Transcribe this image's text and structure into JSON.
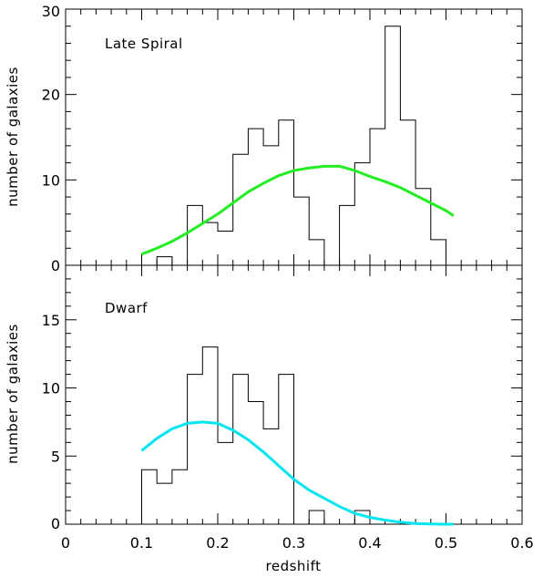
{
  "chart_data": [
    {
      "type": "histogram",
      "title": "Late Spiral",
      "xlabel": "",
      "ylabel": "number of galaxies",
      "xlim": [
        0,
        0.6
      ],
      "ylim": [
        0,
        30
      ],
      "y_ticks": [
        "0",
        "10",
        "20",
        "30"
      ],
      "bin_width": 0.02,
      "bin_start": 0.1,
      "hist_counts": [
        0,
        1,
        0,
        7,
        5,
        4,
        13,
        16,
        14,
        17,
        8,
        3,
        0,
        7,
        12,
        16,
        28,
        17,
        9,
        3,
        0
      ],
      "curve": {
        "color": "#22ee22",
        "x": [
          0.1,
          0.12,
          0.14,
          0.16,
          0.18,
          0.2,
          0.22,
          0.24,
          0.26,
          0.28,
          0.3,
          0.32,
          0.34,
          0.36,
          0.38,
          0.4,
          0.42,
          0.44,
          0.46,
          0.48,
          0.5,
          0.51
        ],
        "y": [
          1.3,
          2.0,
          2.8,
          3.8,
          4.9,
          6.0,
          7.3,
          8.6,
          9.6,
          10.5,
          11.1,
          11.4,
          11.6,
          11.6,
          11.1,
          10.4,
          9.8,
          9.1,
          8.2,
          7.3,
          6.4,
          5.8
        ]
      }
    },
    {
      "type": "histogram",
      "title": "Dwarf",
      "xlabel": "redshift",
      "ylabel": "number of galaxies",
      "xlim": [
        0,
        0.6
      ],
      "ylim": [
        0,
        19
      ],
      "y_ticks": [
        "0",
        "5",
        "10",
        "15"
      ],
      "x_ticks": [
        "0",
        "0.1",
        "0.2",
        "0.3",
        "0.4",
        "0.5",
        "0.6"
      ],
      "bin_width": 0.02,
      "bin_start": 0.1,
      "hist_counts": [
        4,
        3,
        4,
        11,
        13,
        6,
        11,
        9,
        7,
        11,
        0,
        1,
        0,
        0,
        1,
        0
      ],
      "curve": {
        "color": "#00e5f0",
        "x": [
          0.1,
          0.12,
          0.14,
          0.16,
          0.18,
          0.2,
          0.22,
          0.24,
          0.26,
          0.28,
          0.3,
          0.32,
          0.34,
          0.36,
          0.38,
          0.4,
          0.42,
          0.44,
          0.46,
          0.48,
          0.5,
          0.51
        ],
        "y": [
          5.4,
          6.3,
          7.0,
          7.4,
          7.5,
          7.4,
          6.9,
          6.2,
          5.3,
          4.3,
          3.3,
          2.5,
          1.9,
          1.3,
          0.8,
          0.5,
          0.3,
          0.15,
          0.05,
          0.02,
          0.0,
          0.0
        ]
      }
    }
  ]
}
